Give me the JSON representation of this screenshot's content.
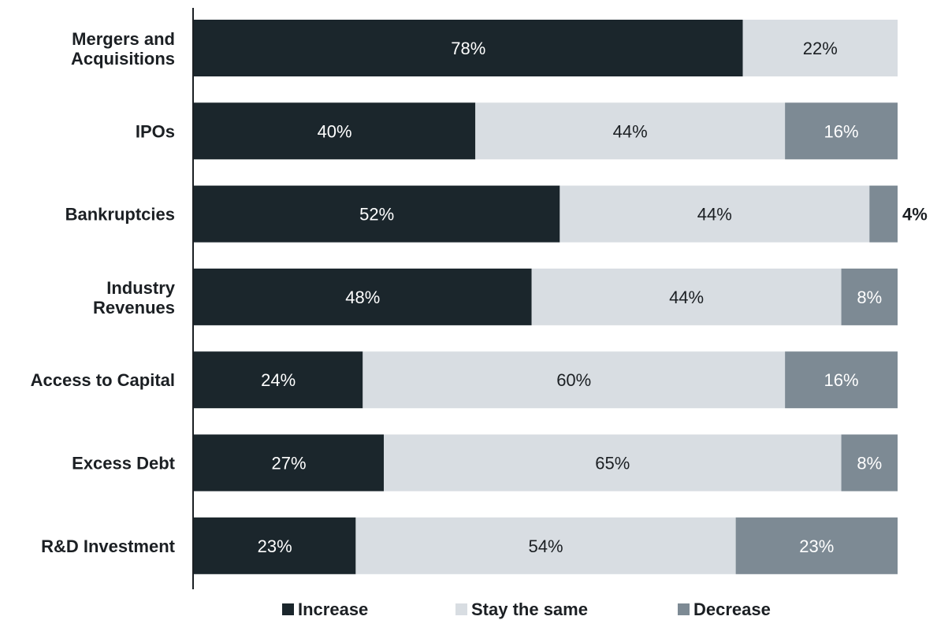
{
  "chart_data": {
    "type": "bar",
    "orientation": "horizontal",
    "stacked": true,
    "percent": true,
    "categories": [
      "Mergers and Acquisitions",
      "IPOs",
      "Bankruptcies",
      "Industry Revenues",
      "Access to Capital",
      "Excess Debt",
      "R&D Investment"
    ],
    "category_lines": [
      [
        "Mergers and",
        "Acquisitions"
      ],
      [
        "IPOs"
      ],
      [
        "Bankruptcies"
      ],
      [
        "Industry",
        "Revenues"
      ],
      [
        "Access to Capital"
      ],
      [
        "Excess Debt"
      ],
      [
        "R&D Investment"
      ]
    ],
    "series": [
      {
        "name": "Increase",
        "values": [
          78,
          40,
          52,
          48,
          24,
          27,
          23
        ],
        "labels": [
          "78%",
          "40%",
          "52%",
          "48%",
          "24%",
          "27%",
          "23%"
        ]
      },
      {
        "name": "Stay the same",
        "values": [
          22,
          44,
          44,
          44,
          60,
          65,
          54
        ],
        "labels": [
          "22%",
          "44%",
          "44%",
          "44%",
          "60%",
          "65%",
          "54%"
        ]
      },
      {
        "name": "Decrease",
        "values": [
          0,
          16,
          4,
          8,
          16,
          8,
          23
        ],
        "labels": [
          "",
          "16%",
          "4%",
          "8%",
          "16%",
          "8%",
          "23%"
        ]
      }
    ],
    "xlim": [
      0,
      100
    ],
    "grid": false,
    "legend_position": "bottom",
    "colors": {
      "Increase": "#1b262c",
      "Stay the same": "#d8dde2",
      "Decrease": "#7d8a94"
    },
    "label_colors": {
      "Increase": "#ffffff",
      "Stay the same": "#1b1f23",
      "Decrease": "#ffffff"
    }
  }
}
